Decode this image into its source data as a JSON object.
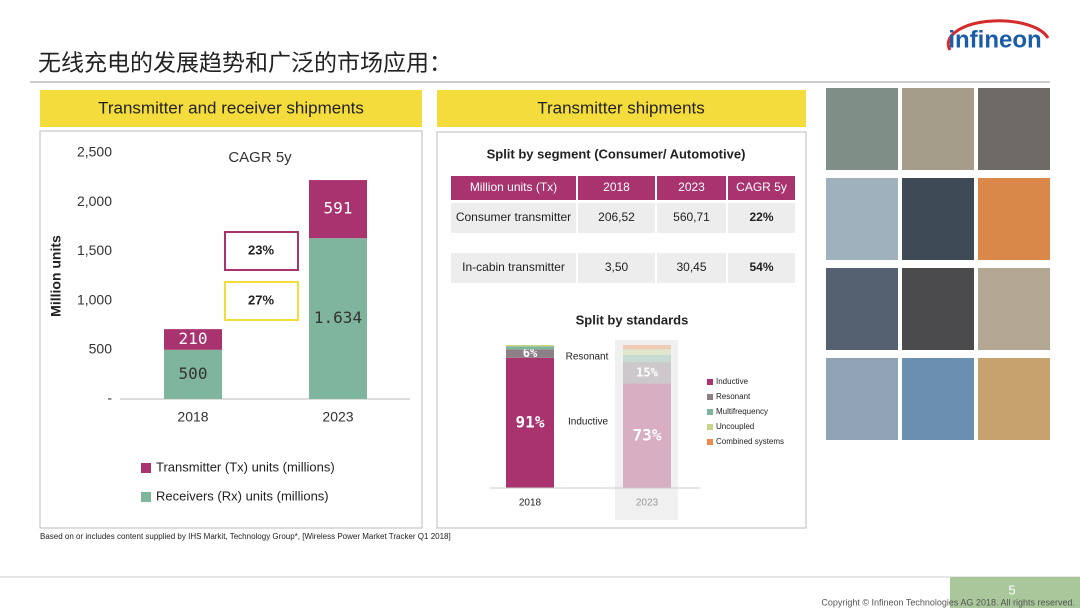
{
  "title": "无线充电的发展趋势和广泛的市场应用：",
  "logo": "infineon",
  "panels": [
    "Transmitter and receiver shipments",
    "Transmitter shipments"
  ],
  "table": {
    "title": "Split by segment (Consumer/ Automotive)",
    "header": [
      "Million units (Tx)",
      "2018",
      "2023",
      "CAGR 5y"
    ],
    "rows": [
      [
        "Consumer transmitter",
        "206,52",
        "560,71",
        "22%"
      ],
      [
        "In-cabin transmitter",
        "3,50",
        "30,45",
        "54%"
      ]
    ]
  },
  "footnote": "Based on or includes content supplied by IHS Markit, Technology Group*, [Wireless Power Market Tracker Q1 2018]",
  "copyright": "Copyright © Infineon Technologies AG 2018. All rights reserved.",
  "page_number": "5",
  "chart_data": [
    {
      "type": "stacked-bar",
      "y_label": "Million units",
      "annotations": [
        "CAGR 5y",
        "23%",
        "27%"
      ],
      "categories": [
        "2018",
        "2023"
      ],
      "series": [
        {
          "name": "Receivers (Rx) units (millions)",
          "color": "#7fb59d",
          "values": [
            500,
            1634
          ],
          "value_labels": [
            "500",
            "1.634"
          ]
        },
        {
          "name": "Transmitter (Tx) units (millions)",
          "color": "#a8336e",
          "values": [
            210,
            591
          ]
        }
      ],
      "ylim": [
        0,
        2500
      ],
      "yticks": [
        {
          "value": 0,
          "label": "-"
        },
        500,
        {
          "value": 1000,
          "label": "1,000"
        },
        {
          "value": 1500,
          "label": "1,500"
        },
        {
          "value": 2000,
          "label": "2,000"
        },
        {
          "value": 2500,
          "label": "2,500"
        }
      ],
      "grid": false
    },
    {
      "type": "stacked-bar",
      "title": "Split by standards",
      "annotations": [
        "Resonant",
        "Inductive"
      ],
      "categories": [
        "2018",
        "2023"
      ],
      "series": [
        {
          "name": "Inductive",
          "color": "#a8336e",
          "values": [
            91,
            73
          ],
          "value_labels": [
            "91%",
            "73%"
          ]
        },
        {
          "name": "Resonant",
          "color": "#8c7f86",
          "values": [
            6,
            15
          ],
          "value_labels": [
            "6%",
            "15%"
          ]
        },
        {
          "name": "Multifrequency",
          "color": "#7fb59d",
          "values": [
            2,
            5
          ],
          "value_labels": [
            null,
            null
          ]
        },
        {
          "name": "Uncoupled",
          "color": "#c4d88a",
          "values": [
            1,
            4
          ],
          "value_labels": [
            null,
            null
          ]
        },
        {
          "name": "Combined systems",
          "color": "#f08a4b",
          "values": [
            0,
            3
          ],
          "value_labels": [
            null,
            null
          ]
        }
      ],
      "ylim": [
        0,
        100
      ],
      "grid": false
    }
  ]
}
